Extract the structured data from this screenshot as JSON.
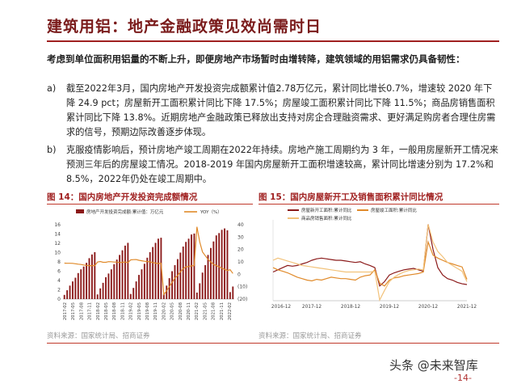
{
  "title": "建筑用铝：地产金融政策见效尚需时日",
  "lead": "考虑到单位面积用铝量的不断上升，即便房地产市场暂时由增转降，建筑领域的用铝需求仍具备韧性：",
  "paragraphs": [
    {
      "label": "a)",
      "text": "截至2022年3月，国内房地产开发投资完成额累计值2.78万亿元，累计同比增长0.7%，增速较 2020 年下降 24.9 pct；房屋新开工面积累计同比下降 17.5%；房屋竣工面积累计同比下降 11.5%；商品房销售面积累计同比下降 13.8%。近期房地产金融政策已释放出支持对房企合理融资需求、更好满足购房者合理住房需求的信号，预期边际改善逐步体现。"
    },
    {
      "label": "b)",
      "text": "克服疫情影响后，预计房地产竣工周期在2022年持续。房地产施工周期约为 3 年，一般用房屋新开工情况来预测三年后的房屋竣工情况。2018-2019 年国内房屋新开工面积增速较高，累计同比增速分别为 17.2%和 8.5%，2022年仍处在竣工周期中。"
    }
  ],
  "figures": [
    {
      "title": "图 14：国内房地产开发投资完成额情况",
      "source": "资料来源：国家统计局、招商证券"
    },
    {
      "title": "图 15：国内房屋新开工及销售面积累计同比情况",
      "source": "资料来源：国家统计局、招商证券"
    }
  ],
  "watermark": "头条 @未来智库",
  "page_number": "-14-",
  "chart_data": [
    {
      "type": "bar",
      "legend": [
        "房地产开发投资完成额:累计值：万亿元",
        "YOY（%）"
      ],
      "x_labels": [
        "2017-02",
        "2017-05",
        "2017-08",
        "2017-11",
        "2018-02",
        "2018-05",
        "2018-08",
        "2018-11",
        "2019-02",
        "2019-05",
        "2019-08",
        "2019-11",
        "2020-02",
        "2020-05",
        "2020-08",
        "2020-11",
        "2021-02",
        "2021-05",
        "2021-08",
        "2021-11",
        "2022-02"
      ],
      "left_ticks": [
        "0",
        "2",
        "4",
        "6",
        "8",
        "10",
        "12",
        "14",
        "16"
      ],
      "right_ticks": [
        "40",
        "30",
        "20",
        "10",
        "0",
        "(10)",
        "(20)"
      ],
      "ylim_left": [
        0,
        16
      ],
      "ylim_right": [
        -20,
        40
      ],
      "bar_values": [
        0.9,
        1.9,
        2.9,
        3.8,
        4.6,
        5.6,
        6.4,
        7.0,
        7.8,
        8.8,
        9.6,
        10.1,
        1.0,
        2.3,
        3.5,
        4.7,
        5.5,
        6.4,
        7.5,
        8.5,
        9.5,
        10.5,
        11.5,
        12.1,
        1.1,
        2.4,
        3.8,
        5.2,
        6.4,
        7.6,
        8.9,
        10.1,
        11.2,
        12.1,
        13.0,
        13.2,
        1.0,
        2.9,
        4.5,
        6.0,
        7.3,
        8.6,
        10.0,
        11.3,
        12.3,
        13.0,
        13.9,
        14.1,
        1.4,
        3.4,
        5.7,
        7.3,
        9.5,
        11.0,
        12.4,
        13.7,
        14.2,
        14.9,
        15.2,
        14.8,
        1.5,
        2.7
      ],
      "yoy_values": [
        9.0,
        8.9,
        8.9,
        8.8,
        8.5,
        8.2,
        7.9,
        7.5,
        7.2,
        7.0,
        7.0,
        7.0,
        9.9,
        10.3,
        9.7,
        9.7,
        10.2,
        10.1,
        9.9,
        9.9,
        9.5,
        9.7,
        9.9,
        9.5,
        11.6,
        11.8,
        11.9,
        11.3,
        10.9,
        10.5,
        10.3,
        10.0,
        9.5,
        9.0,
        8.7,
        8.8,
        -16.3,
        -13.5,
        -10.0,
        -6.5,
        -3.0,
        -1.0,
        2.0,
        4.5,
        6.0,
        6.3,
        6.8,
        7.0,
        38.3,
        26.0,
        18.0,
        15.0,
        12.0,
        10.0,
        8.0,
        7.0,
        6.0,
        5.0,
        4.0,
        3.0,
        3.7,
        0.7
      ]
    },
    {
      "type": "line",
      "legend": [
        "房屋新开工面积:累计同比",
        "房屋竣工面积:累计同比",
        "商品房销售面积:累计同比"
      ],
      "x_labels": [
        "2016-12",
        "2017-12",
        "2018-12",
        "2019-12",
        "2020-12",
        "2021-12"
      ],
      "series": [
        {
          "name": "房屋新开工面积:累计同比",
          "color": "#8b1a1a",
          "values": [
            -1,
            2,
            5,
            8,
            7,
            8,
            10,
            12,
            15,
            17,
            18,
            17,
            16,
            15,
            15,
            14,
            13,
            12,
            13,
            10,
            8,
            5,
            -20,
            -14,
            -5,
            -2,
            0,
            2,
            3,
            4,
            2,
            0,
            64,
            30,
            5,
            -5,
            -10,
            -12,
            -15,
            -17,
            -18
          ]
        },
        {
          "name": "房屋竣工面积:累计同比",
          "color": "#e08a2a",
          "values": [
            5,
            2,
            0,
            -2,
            -5,
            -8,
            -10,
            -12,
            -13,
            -11,
            -12,
            -10,
            -8,
            -9,
            -10,
            -10,
            -11,
            -12,
            -8,
            -6,
            -5,
            2,
            -16,
            -20,
            -12,
            -9,
            -8,
            -6,
            -5,
            -4,
            -3,
            -1,
            40,
            22,
            18,
            15,
            12,
            10,
            8,
            6,
            -11
          ]
        },
        {
          "name": "商品房销售面积:累计同比",
          "color": "#f2c27a",
          "values": [
            15,
            18,
            16,
            14,
            12,
            10,
            8,
            7,
            6,
            5,
            4,
            3,
            2,
            1,
            0,
            -1,
            -1,
            -1,
            -1,
            -1,
            -1,
            0,
            -39,
            -26,
            -14,
            -8,
            -4,
            -1,
            1,
            2,
            3,
            2,
            64,
            40,
            27,
            20,
            12,
            8,
            4,
            0,
            -14
          ]
        }
      ]
    }
  ]
}
